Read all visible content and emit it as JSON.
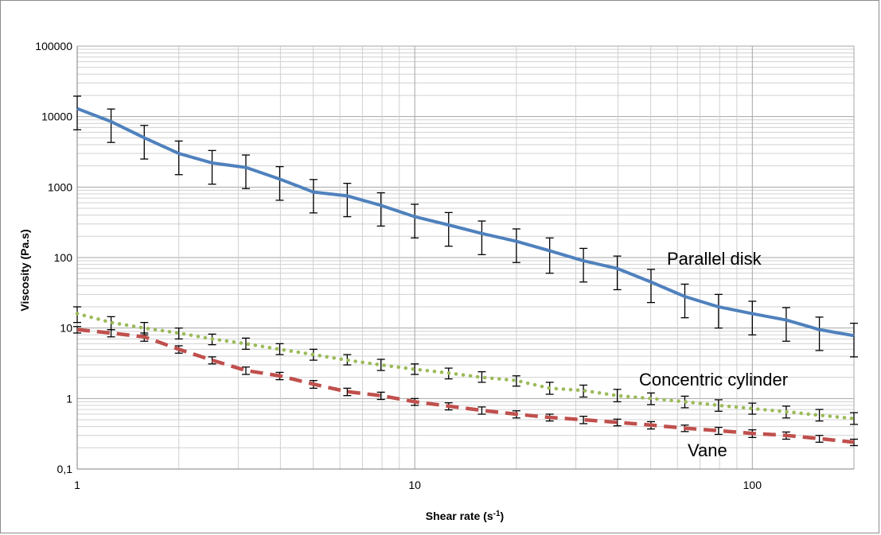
{
  "chart_data": {
    "type": "line",
    "xlabel_main": "Shear rate (s",
    "xlabel_sup": "-1",
    "xlabel_close": ")",
    "ylabel": "Viscosity (Pa.s)",
    "x_scale": "log",
    "y_scale": "log",
    "xlim": [
      1,
      200
    ],
    "ylim": [
      0.1,
      100000
    ],
    "x_ticks": [
      {
        "value": 1,
        "label": "1"
      },
      {
        "value": 10,
        "label": "10"
      },
      {
        "value": 100,
        "label": "100"
      }
    ],
    "y_ticks": [
      {
        "value": 0.1,
        "label": "0,1"
      },
      {
        "value": 1,
        "label": "1"
      },
      {
        "value": 10,
        "label": "10"
      },
      {
        "value": 100,
        "label": "100"
      },
      {
        "value": 1000,
        "label": "1000"
      },
      {
        "value": 10000,
        "label": "10000"
      },
      {
        "value": 100000,
        "label": "100000"
      }
    ],
    "grid": true,
    "x": [
      1,
      1.26,
      1.58,
      2,
      2.51,
      3.16,
      3.98,
      5.01,
      6.31,
      7.94,
      10,
      12.6,
      15.8,
      20,
      25.1,
      31.6,
      39.8,
      50.1,
      63.1,
      79.4,
      100,
      126,
      158,
      200
    ],
    "series": [
      {
        "name": "Parallel disk",
        "color": "#4f81bd",
        "style": "solid",
        "values": [
          13000,
          8500,
          5000,
          3000,
          2200,
          1900,
          1300,
          850,
          750,
          550,
          380,
          290,
          220,
          170,
          125,
          90,
          70,
          45,
          28,
          20,
          16,
          13,
          9.5,
          7.8
        ],
        "error_low": [
          6500,
          4300,
          2500,
          1500,
          1100,
          950,
          650,
          430,
          380,
          280,
          190,
          145,
          110,
          85,
          60,
          45,
          35,
          23,
          14,
          10,
          8,
          6.5,
          4.8,
          3.9
        ],
        "error_high": [
          19500,
          12800,
          7500,
          4500,
          3300,
          2850,
          1950,
          1280,
          1130,
          830,
          570,
          435,
          330,
          255,
          190,
          135,
          105,
          68,
          42,
          30,
          24,
          19.5,
          14.3,
          11.7
        ]
      },
      {
        "name": "Concentric cylinder",
        "color": "#9bbb59",
        "style": "dotted",
        "values": [
          16,
          12,
          10,
          8.5,
          7,
          6,
          5,
          4.2,
          3.5,
          3,
          2.6,
          2.3,
          2,
          1.8,
          1.4,
          1.3,
          1.1,
          1,
          0.9,
          0.8,
          0.72,
          0.65,
          0.58,
          0.52
        ],
        "error_low": [
          12,
          9.5,
          8,
          7,
          5.8,
          5,
          4.2,
          3.5,
          3,
          2.5,
          2.2,
          1.9,
          1.7,
          1.5,
          1.15,
          1.05,
          0.9,
          0.82,
          0.74,
          0.66,
          0.6,
          0.53,
          0.48,
          0.43
        ],
        "error_high": [
          20,
          14.5,
          12,
          10,
          8.2,
          7.2,
          6,
          5,
          4.2,
          3.6,
          3.1,
          2.7,
          2.4,
          2.1,
          1.7,
          1.55,
          1.35,
          1.2,
          1.08,
          0.96,
          0.86,
          0.78,
          0.7,
          0.63
        ]
      },
      {
        "name": "Vane",
        "color": "#c0504d",
        "style": "dashed",
        "values": [
          9.5,
          8.5,
          7.5,
          5,
          3.5,
          2.5,
          2.1,
          1.6,
          1.25,
          1.1,
          0.9,
          0.78,
          0.68,
          0.6,
          0.54,
          0.5,
          0.46,
          0.42,
          0.38,
          0.35,
          0.32,
          0.3,
          0.27,
          0.24
        ],
        "error_low": [
          8.5,
          7.5,
          6.5,
          4.4,
          3.1,
          2.2,
          1.85,
          1.4,
          1.1,
          0.97,
          0.8,
          0.69,
          0.6,
          0.53,
          0.48,
          0.44,
          0.41,
          0.37,
          0.34,
          0.31,
          0.28,
          0.265,
          0.24,
          0.215
        ],
        "error_high": [
          10.5,
          9.5,
          8.5,
          5.6,
          3.9,
          2.8,
          2.35,
          1.8,
          1.4,
          1.23,
          1,
          0.87,
          0.76,
          0.67,
          0.6,
          0.56,
          0.51,
          0.47,
          0.42,
          0.39,
          0.36,
          0.335,
          0.3,
          0.265
        ]
      }
    ]
  }
}
